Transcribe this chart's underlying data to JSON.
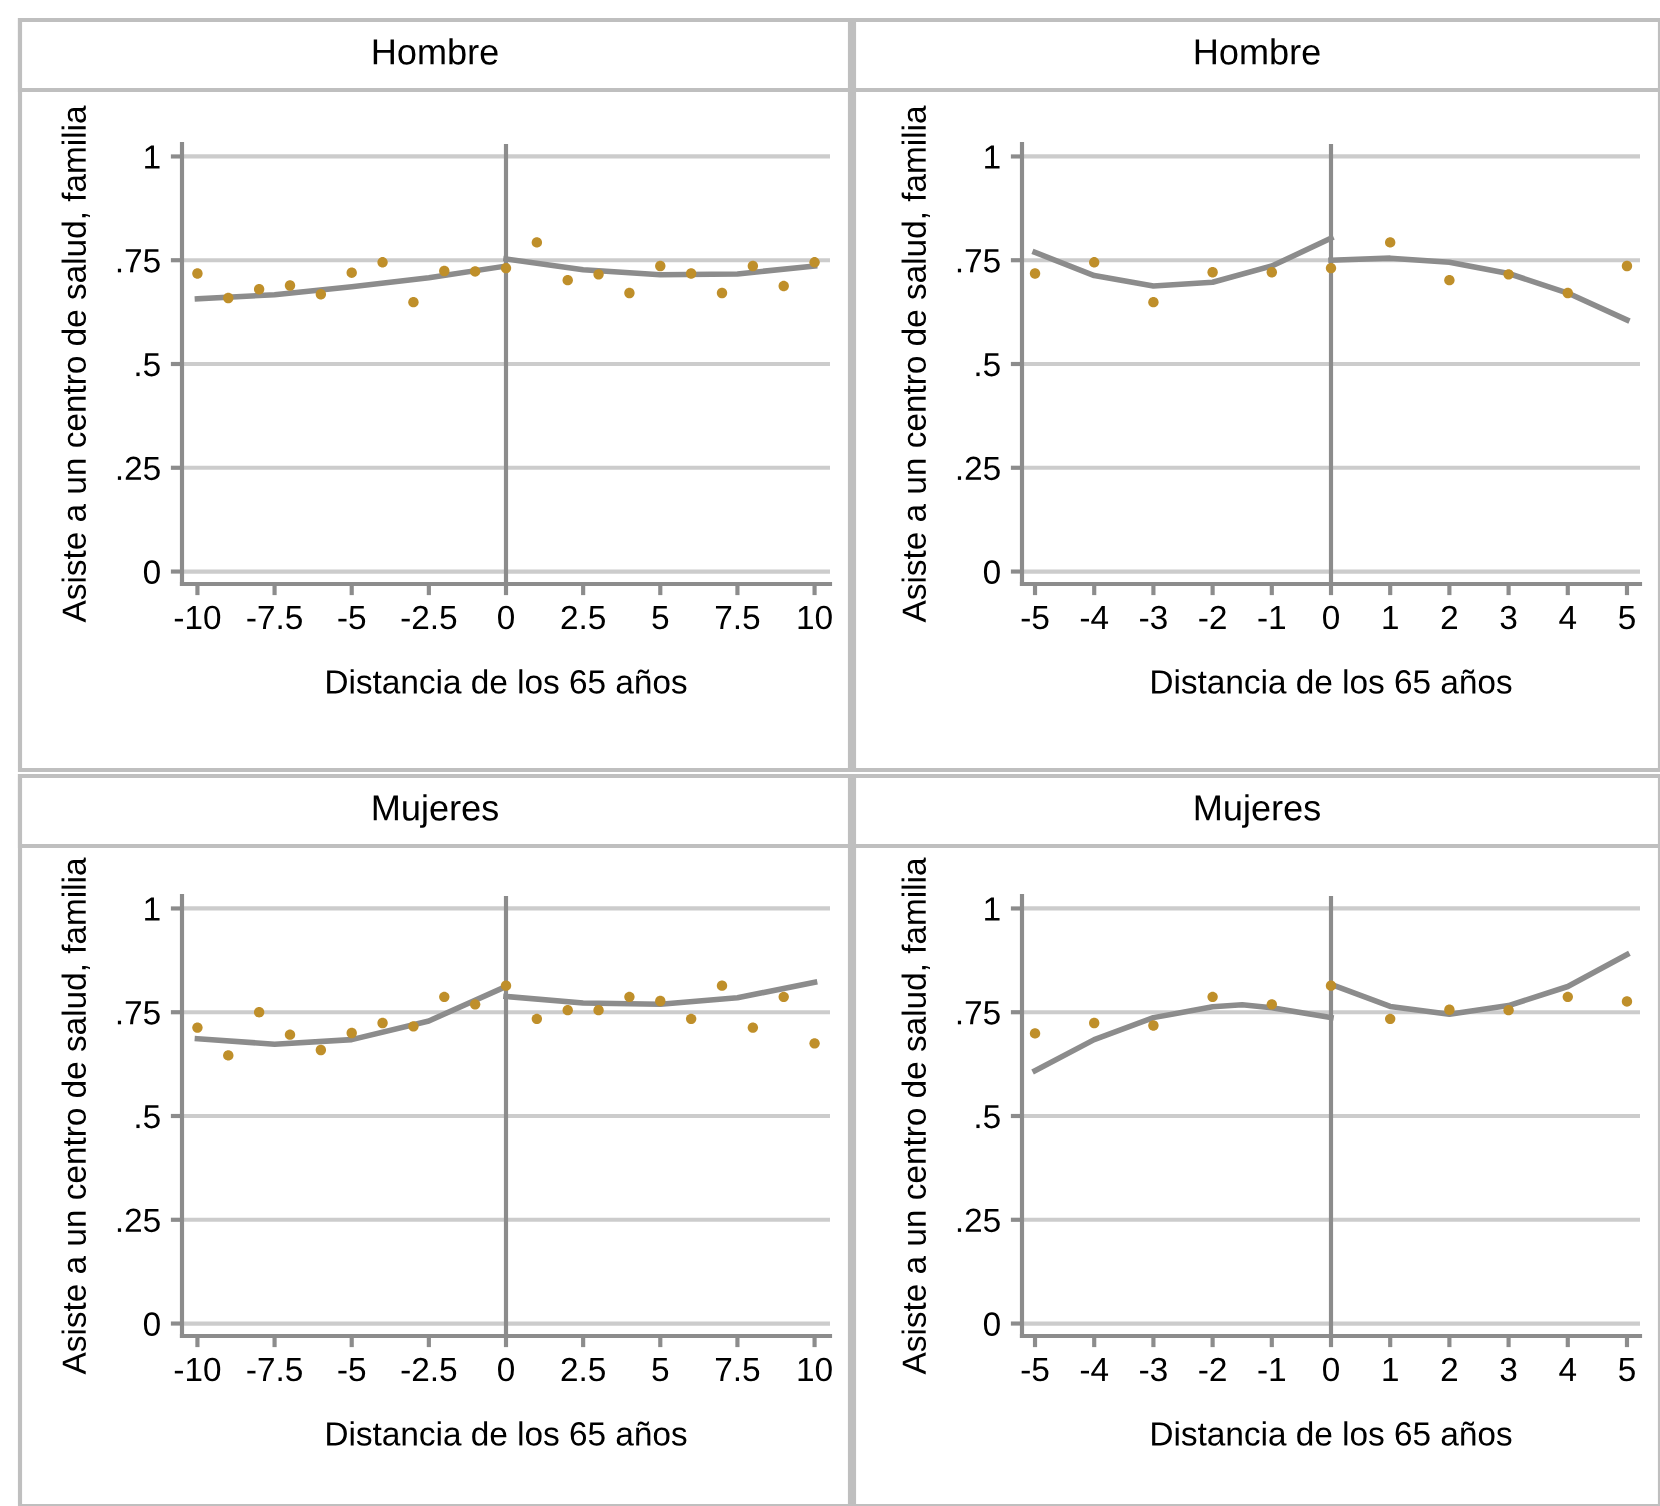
{
  "chart_data": [
    {
      "type": "scatter",
      "title": "Hombre",
      "xlabel": "Distancia de los 65 años",
      "ylabel": "Asiste a un centro de salud, familia",
      "xlim": [
        -10.5,
        10.5
      ],
      "xticks": [
        -10,
        {
          "value": -7.5,
          "label": "-7.5"
        },
        -5,
        {
          "value": -2.5,
          "label": "-2.5"
        },
        0,
        {
          "value": 2.5,
          "label": "2.5"
        },
        5,
        {
          "value": 7.5,
          "label": "7.5"
        },
        10
      ],
      "ylim": [
        -0.03,
        1.03
      ],
      "yticks": [
        0,
        {
          "value": 0.25,
          "label": ".25"
        },
        {
          "value": 0.5,
          "label": ".5"
        },
        {
          "value": 0.75,
          "label": ".75"
        },
        1
      ],
      "grid": "y",
      "ref_lines": [
        {
          "axis": "x",
          "value": 0,
          "color": "#8c8c8c"
        }
      ],
      "series": [
        {
          "marker": "circle",
          "color": "#bf8f2a",
          "x": [
            -10,
            -9,
            -8,
            -7,
            -6,
            -5,
            -4,
            -3,
            -2,
            -1,
            0,
            1,
            2,
            3,
            4,
            5,
            6,
            7,
            8,
            9,
            10
          ],
          "values": [
            0.718,
            0.659,
            0.68,
            0.689,
            0.668,
            0.72,
            0.745,
            0.649,
            0.724,
            0.723,
            0.731,
            0.793,
            0.702,
            0.716,
            0.671,
            0.736,
            0.718,
            0.671,
            0.736,
            0.688,
            0.745
          ]
        },
        {
          "type": "line",
          "color": "#8c8c8c",
          "x": [
            -10,
            -7.5,
            -5,
            -2.5,
            0
          ],
          "values": [
            0.657,
            0.667,
            0.686,
            0.708,
            0.736
          ]
        },
        {
          "type": "line",
          "color": "#8c8c8c",
          "x": [
            0,
            2.5,
            5,
            7.5,
            10
          ],
          "values": [
            0.753,
            0.727,
            0.715,
            0.717,
            0.736
          ]
        }
      ]
    },
    {
      "type": "scatter",
      "title": "Hombre",
      "xlabel": "Distancia de los 65 años",
      "ylabel": "Asiste a un centro de salud, familia",
      "xlim": [
        -5.22,
        5.22
      ],
      "xticks": [
        -5,
        -4,
        -3,
        -2,
        -1,
        0,
        1,
        2,
        3,
        4,
        5
      ],
      "ylim": [
        -0.03,
        1.03
      ],
      "yticks": [
        0,
        {
          "value": 0.25,
          "label": ".25"
        },
        {
          "value": 0.5,
          "label": ".5"
        },
        {
          "value": 0.75,
          "label": ".75"
        },
        1
      ],
      "grid": "y",
      "ref_lines": [
        {
          "axis": "x",
          "value": 0,
          "color": "#8c8c8c"
        }
      ],
      "series": [
        {
          "marker": "circle",
          "color": "#bf8f2a",
          "x": [
            -5,
            -4,
            -3,
            -2,
            -1,
            0,
            1,
            2,
            3,
            4,
            5
          ],
          "values": [
            0.718,
            0.745,
            0.649,
            0.721,
            0.721,
            0.731,
            0.793,
            0.702,
            0.716,
            0.671,
            0.736
          ]
        },
        {
          "type": "line",
          "color": "#8c8c8c",
          "x": [
            -5,
            -4,
            -3,
            -2,
            -1,
            0
          ],
          "values": [
            0.769,
            0.713,
            0.688,
            0.697,
            0.736,
            0.803
          ]
        },
        {
          "type": "line",
          "color": "#8c8c8c",
          "x": [
            0,
            1,
            2,
            3,
            4,
            5
          ],
          "values": [
            0.75,
            0.755,
            0.745,
            0.718,
            0.671,
            0.606
          ]
        }
      ]
    },
    {
      "type": "scatter",
      "title": "Mujeres",
      "xlabel": "Distancia de los 65 años",
      "ylabel": "Asiste a un centro de salud, familia",
      "xlim": [
        -10.5,
        10.5
      ],
      "xticks": [
        -10,
        {
          "value": -7.5,
          "label": "-7.5"
        },
        -5,
        {
          "value": -2.5,
          "label": "-2.5"
        },
        0,
        {
          "value": 2.5,
          "label": "2.5"
        },
        5,
        {
          "value": 7.5,
          "label": "7.5"
        },
        10
      ],
      "ylim": [
        -0.03,
        1.03
      ],
      "yticks": [
        0,
        {
          "value": 0.25,
          "label": ".25"
        },
        {
          "value": 0.5,
          "label": ".5"
        },
        {
          "value": 0.75,
          "label": ".75"
        },
        1
      ],
      "grid": "y",
      "ref_lines": [
        {
          "axis": "x",
          "value": 0,
          "color": "#8c8c8c"
        }
      ],
      "series": [
        {
          "marker": "circle",
          "color": "#bf8f2a",
          "x": [
            -10,
            -9,
            -8,
            -7,
            -6,
            -5,
            -4,
            -3,
            -2,
            -1,
            0,
            1,
            2,
            3,
            4,
            5,
            6,
            7,
            8,
            9,
            10
          ],
          "values": [
            0.713,
            0.646,
            0.75,
            0.696,
            0.659,
            0.7,
            0.724,
            0.716,
            0.787,
            0.769,
            0.814,
            0.734,
            0.755,
            0.755,
            0.787,
            0.777,
            0.734,
            0.814,
            0.713,
            0.787,
            0.675
          ]
        },
        {
          "type": "line",
          "color": "#8c8c8c",
          "x": [
            -10,
            -7.5,
            -5,
            -2.5,
            0
          ],
          "values": [
            0.686,
            0.673,
            0.684,
            0.729,
            0.812
          ]
        },
        {
          "type": "line",
          "color": "#8c8c8c",
          "x": [
            0,
            2.5,
            5,
            7.5,
            10
          ],
          "values": [
            0.788,
            0.772,
            0.769,
            0.785,
            0.822
          ]
        }
      ]
    },
    {
      "type": "scatter",
      "title": "Mujeres",
      "xlabel": "Distancia de los 65 años",
      "ylabel": "Asiste a un centro de salud, familia",
      "xlim": [
        -5.22,
        5.22
      ],
      "xticks": [
        -5,
        -4,
        -3,
        -2,
        -1,
        0,
        1,
        2,
        3,
        4,
        5
      ],
      "ylim": [
        -0.03,
        1.03
      ],
      "yticks": [
        0,
        {
          "value": 0.25,
          "label": ".25"
        },
        {
          "value": 0.5,
          "label": ".5"
        },
        {
          "value": 0.75,
          "label": ".75"
        },
        1
      ],
      "grid": "y",
      "ref_lines": [
        {
          "axis": "x",
          "value": 0,
          "color": "#8c8c8c"
        }
      ],
      "series": [
        {
          "marker": "circle",
          "color": "#bf8f2a",
          "x": [
            -5,
            -4,
            -3,
            -2,
            -1,
            0,
            1,
            2,
            3,
            4,
            5
          ],
          "values": [
            0.699,
            0.724,
            0.718,
            0.787,
            0.769,
            0.814,
            0.734,
            0.756,
            0.755,
            0.787,
            0.776
          ]
        },
        {
          "type": "line",
          "color": "#8c8c8c",
          "x": [
            -5,
            -4,
            -3,
            -2,
            -1.5,
            -1,
            0
          ],
          "values": [
            0.609,
            0.684,
            0.737,
            0.763,
            0.768,
            0.761,
            0.737
          ]
        },
        {
          "type": "line",
          "color": "#8c8c8c",
          "x": [
            0,
            1,
            2,
            3,
            4,
            5
          ],
          "values": [
            0.817,
            0.764,
            0.745,
            0.766,
            0.812,
            0.889
          ]
        }
      ]
    }
  ]
}
